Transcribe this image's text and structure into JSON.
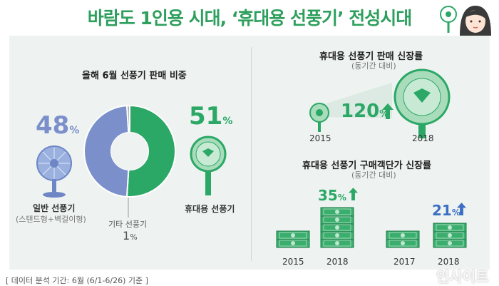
{
  "title": "바람도 1인용 시대, ‘휴대용 선풍기’ 전성시대",
  "footer_note": "[ 데이터 분석 기간: 6월 (6/1-6/26) 기준 ]",
  "watermark": "인사이트",
  "left": {
    "heading": "올해 6월 선풍기 판매 비중",
    "general": {
      "pct": "48",
      "unit": "%",
      "label": "일반 선풍기",
      "sublabel": "(스탠드형+벽걸이형)"
    },
    "other": {
      "label": "기타 선풍기",
      "pct": "1",
      "unit": "%"
    },
    "portable": {
      "pct": "51",
      "unit": "%",
      "label": "휴대용 선풍기"
    }
  },
  "right_top": {
    "heading": "휴대용 선풍기 판매 신장률",
    "sub": "(동기간 대비)",
    "value": "120",
    "unit": "%",
    "year_a": "2015",
    "year_b": "2018"
  },
  "right_bottom": {
    "heading": "휴대용 선풍기 구매객단가 신장률",
    "sub": "(동기간 대비)",
    "pair1": {
      "value": "35",
      "unit": "%",
      "year_a": "2015",
      "year_b": "2018"
    },
    "pair2": {
      "value": "21",
      "unit": "%",
      "year_a": "2017",
      "year_b": "2018"
    }
  },
  "colors": {
    "green": "#2ba866",
    "blue": "#7b8fcb",
    "gray": "#b3b3b3",
    "blue_arrow": "#3c6fc4"
  },
  "chart_data": [
    {
      "type": "pie",
      "title": "올해 6월 선풍기 판매 비중",
      "categories": [
        "휴대용 선풍기",
        "일반 선풍기",
        "기타 선풍기"
      ],
      "values": [
        51,
        48,
        1
      ],
      "unit": "%"
    },
    {
      "type": "bar",
      "title": "휴대용 선풍기 판매 신장률",
      "categories": [
        "2015",
        "2018"
      ],
      "growth_pct": 120
    },
    {
      "type": "bar",
      "title": "휴대용 선풍기 구매객단가 신장률",
      "groups": [
        {
          "categories": [
            "2015",
            "2018"
          ],
          "growth_pct": 35
        },
        {
          "categories": [
            "2017",
            "2018"
          ],
          "growth_pct": 21
        }
      ]
    }
  ]
}
